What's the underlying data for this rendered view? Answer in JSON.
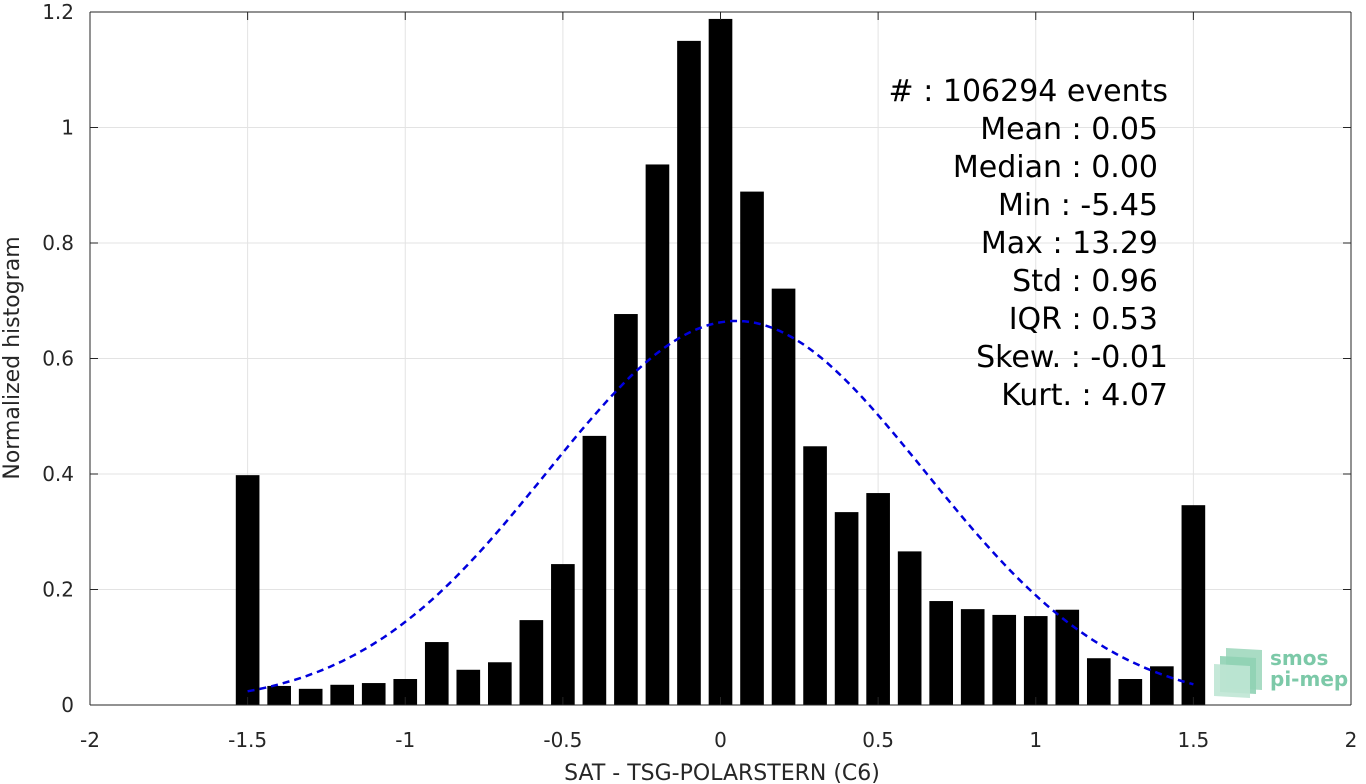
{
  "chart_data": {
    "type": "bar",
    "xlabel": "SAT - TSG-POLARSTERN (C6)",
    "ylabel": "Normalized histogram",
    "xlim": [
      -2,
      2
    ],
    "ylim": [
      0,
      1.2
    ],
    "xticks": [
      "-2",
      "-1.5",
      "-1",
      "-0.5",
      "0",
      "0.5",
      "1",
      "1.5",
      "2"
    ],
    "yticks": [
      "0",
      "0.2",
      "0.4",
      "0.6",
      "0.8",
      "1",
      "1.2"
    ],
    "grid": true,
    "bar_color": "#000000",
    "bins": [
      {
        "x": -1.5,
        "y": 0.398
      },
      {
        "x": -1.4,
        "y": 0.033
      },
      {
        "x": -1.3,
        "y": 0.028
      },
      {
        "x": -1.2,
        "y": 0.035
      },
      {
        "x": -1.1,
        "y": 0.038
      },
      {
        "x": -1.0,
        "y": 0.045
      },
      {
        "x": -0.9,
        "y": 0.109
      },
      {
        "x": -0.8,
        "y": 0.061
      },
      {
        "x": -0.7,
        "y": 0.074
      },
      {
        "x": -0.6,
        "y": 0.147
      },
      {
        "x": -0.5,
        "y": 0.244
      },
      {
        "x": -0.4,
        "y": 0.466
      },
      {
        "x": -0.3,
        "y": 0.677
      },
      {
        "x": -0.2,
        "y": 0.936
      },
      {
        "x": -0.1,
        "y": 1.15
      },
      {
        "x": 0.0,
        "y": 1.188
      },
      {
        "x": 0.1,
        "y": 0.889
      },
      {
        "x": 0.2,
        "y": 0.721
      },
      {
        "x": 0.3,
        "y": 0.448
      },
      {
        "x": 0.4,
        "y": 0.334
      },
      {
        "x": 0.5,
        "y": 0.367
      },
      {
        "x": 0.6,
        "y": 0.266
      },
      {
        "x": 0.7,
        "y": 0.18
      },
      {
        "x": 0.8,
        "y": 0.166
      },
      {
        "x": 0.9,
        "y": 0.156
      },
      {
        "x": 1.0,
        "y": 0.154
      },
      {
        "x": 1.1,
        "y": 0.165
      },
      {
        "x": 1.2,
        "y": 0.081
      },
      {
        "x": 1.3,
        "y": 0.045
      },
      {
        "x": 1.4,
        "y": 0.067
      },
      {
        "x": 1.5,
        "y": 0.346
      }
    ],
    "fit_curve": {
      "type": "gaussian",
      "mean": 0.05,
      "std": 0.6,
      "peak": 0.665,
      "x_range": [
        -1.5,
        1.5
      ],
      "color": "#0000dd",
      "style": "dashed"
    },
    "stats": [
      {
        "label": "#  : 106294 events"
      },
      {
        "label": "Mean : 0.05"
      },
      {
        "label": "Median : 0.00"
      },
      {
        "label": "Min : -5.45"
      },
      {
        "label": "Max : 13.29"
      },
      {
        "label": "Std : 0.96"
      },
      {
        "label": "IQR : 0.53"
      },
      {
        "label": "Skew. : -0.01"
      },
      {
        "label": "Kurt. : 4.07"
      }
    ]
  },
  "logo": {
    "line1": "smos",
    "line2": "pi-mep"
  }
}
